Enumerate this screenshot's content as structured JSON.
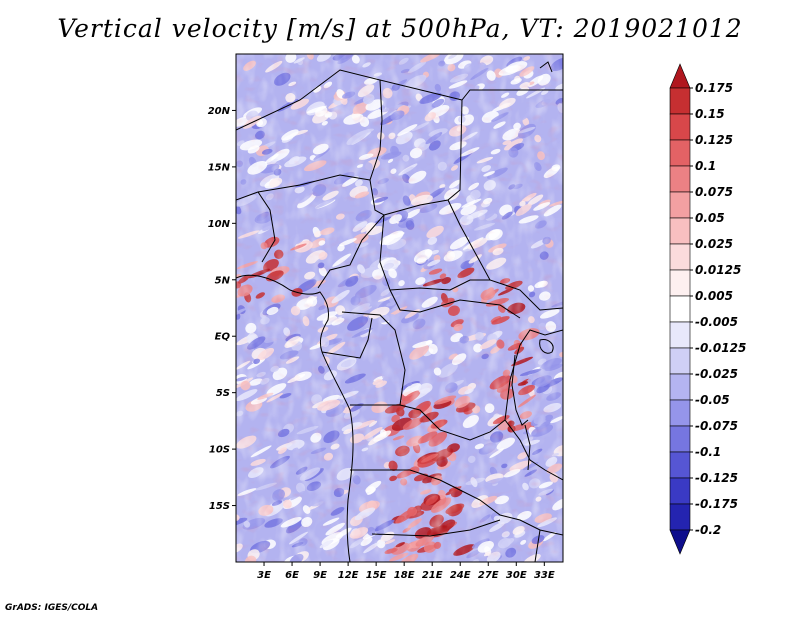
{
  "title": "Vertical velocity [m/s] at 500hPa, VT: 2019021012",
  "credit": "GrADS: IGES/COLA",
  "map": {
    "lat_range": [
      -20,
      25
    ],
    "lon_range": [
      0,
      35
    ],
    "lat_ticks": [
      "20N",
      "15N",
      "10N",
      "5N",
      "EQ",
      "5S",
      "10S",
      "15S"
    ],
    "lat_tick_values": [
      20,
      15,
      10,
      5,
      0,
      -5,
      -10,
      -15
    ],
    "lon_ticks": [
      "3E",
      "6E",
      "9E",
      "12E",
      "15E",
      "18E",
      "21E",
      "24E",
      "27E",
      "30E",
      "33E"
    ],
    "lon_tick_values": [
      3,
      6,
      9,
      12,
      15,
      18,
      21,
      24,
      27,
      30,
      33
    ]
  },
  "colorbar": {
    "labels": [
      "0.175",
      "0.15",
      "0.125",
      "0.1",
      "0.075",
      "0.05",
      "0.025",
      "0.0125",
      "0.005",
      "-0.005",
      "-0.0125",
      "-0.025",
      "-0.05",
      "-0.075",
      "-0.1",
      "-0.125",
      "-0.175",
      "-0.2"
    ],
    "colors": [
      "#b0171f",
      "#c62f31",
      "#d8474a",
      "#e36265",
      "#ec8184",
      "#f3a0a2",
      "#f8bfc0",
      "#fbdbdc",
      "#fdf0f0",
      "#ffffff",
      "#e8e8fb",
      "#cfcff6",
      "#b4b4f1",
      "#9595ea",
      "#7676e0",
      "#5656d4",
      "#3a3ac4",
      "#2424b0",
      "#0e0e8c"
    ]
  },
  "chart_data": {
    "type": "heatmap",
    "title": "Vertical velocity [m/s] at 500hPa, VT: 2019021012",
    "variable": "Vertical velocity",
    "units": "m/s",
    "level": "500hPa",
    "valid_time": "2019021012",
    "x_range": [
      0,
      35
    ],
    "y_range": [
      -20,
      25
    ],
    "x_ticks": [
      "3E",
      "6E",
      "9E",
      "12E",
      "15E",
      "18E",
      "21E",
      "24E",
      "27E",
      "30E",
      "33E"
    ],
    "y_ticks": [
      "20N",
      "15N",
      "10N",
      "5N",
      "EQ",
      "5S",
      "10S",
      "15S"
    ],
    "contour_levels": [
      -0.2,
      -0.175,
      -0.125,
      -0.1,
      -0.075,
      -0.05,
      -0.025,
      -0.0125,
      -0.005,
      0.005,
      0.0125,
      0.025,
      0.05,
      0.075,
      0.1,
      0.125,
      0.15,
      0.175
    ]
  }
}
